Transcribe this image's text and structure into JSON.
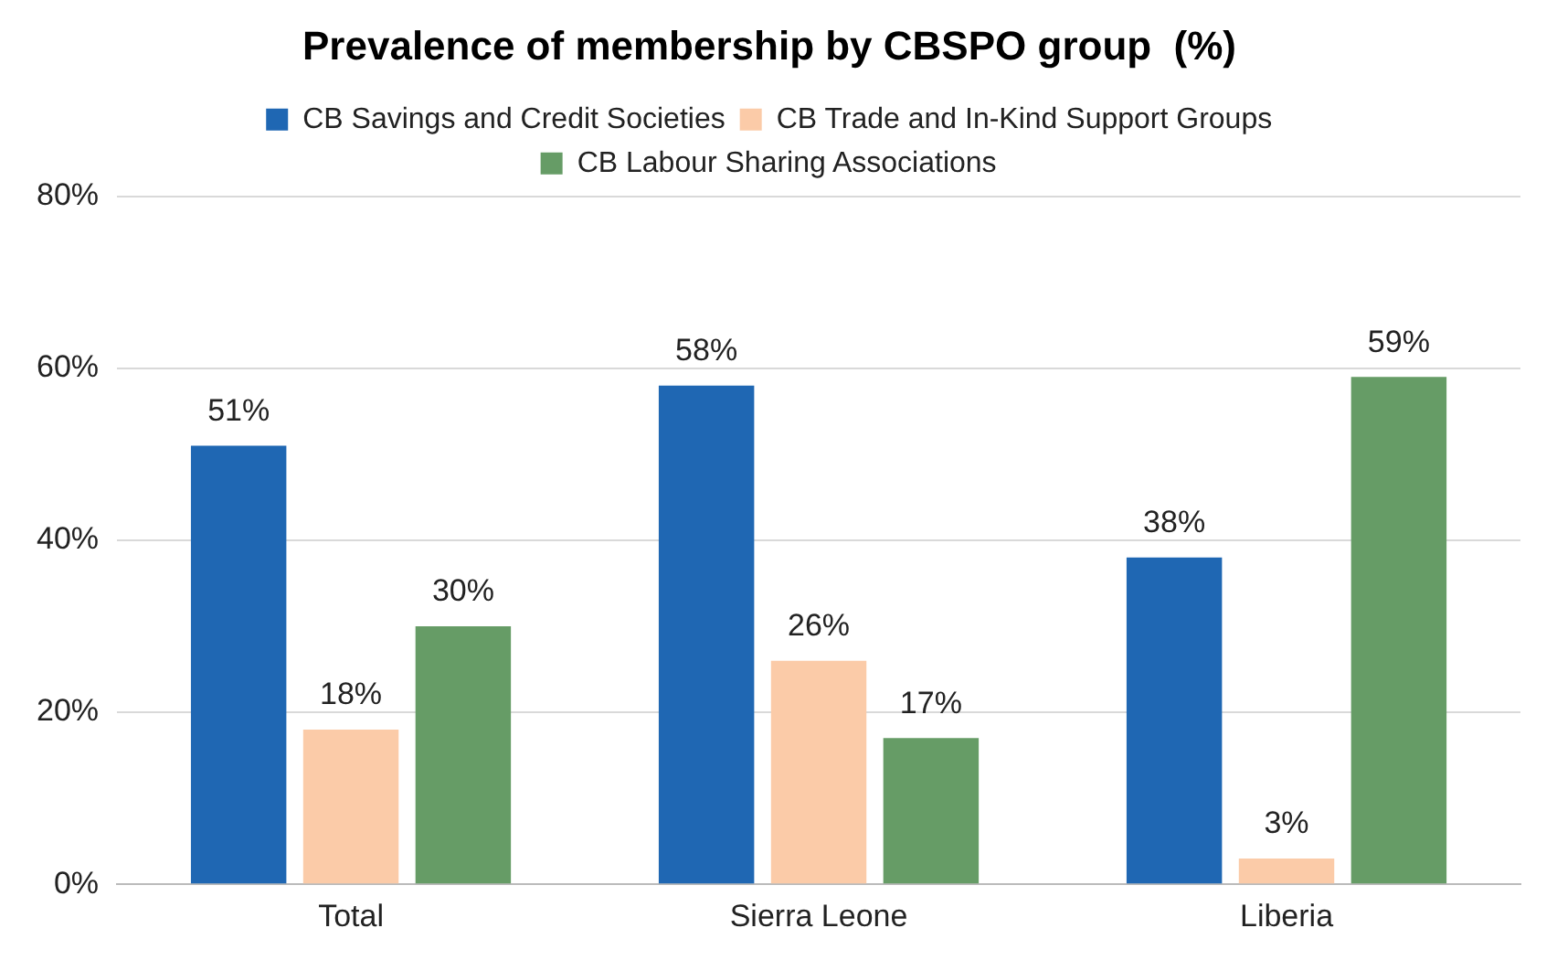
{
  "chart_data": {
    "type": "bar",
    "title": "Prevalence of membership by CBSPO group  (%)",
    "categories": [
      "Total",
      "Sierra Leone",
      "Liberia"
    ],
    "series": [
      {
        "name": "CB Savings and Credit Societies",
        "color": "#1f67b3",
        "values": [
          51,
          58,
          38
        ],
        "value_labels": [
          "51%",
          "58%",
          "38%"
        ]
      },
      {
        "name": "CB Trade and In-Kind Support Groups",
        "color": "#fbcba8",
        "values": [
          18,
          26,
          3
        ],
        "value_labels": [
          "18%",
          "26%",
          "3%"
        ]
      },
      {
        "name": "CB Labour Sharing Associations",
        "color": "#669c66",
        "values": [
          30,
          17,
          59
        ],
        "value_labels": [
          "30%",
          "17%",
          "59%"
        ]
      }
    ],
    "ylim": [
      0,
      80
    ],
    "yticks": [
      {
        "value": 0,
        "label": "0%"
      },
      {
        "value": 20,
        "label": "20%"
      },
      {
        "value": 40,
        "label": "40%"
      },
      {
        "value": 60,
        "label": "60%"
      },
      {
        "value": 80,
        "label": "80%"
      }
    ],
    "grid": "y",
    "legend": "top"
  }
}
